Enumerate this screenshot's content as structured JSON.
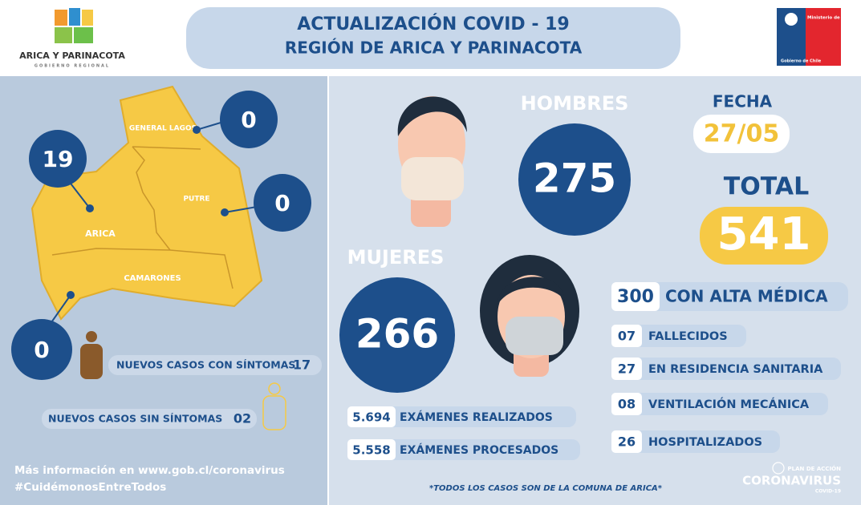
{
  "header": {
    "org": "ARICA Y PARINACOTA",
    "org_sub": "GOBIERNO REGIONAL",
    "title": "ACTUALIZACIÓN COVID - 19",
    "subtitle": "REGIÓN DE ARICA Y PARINACOTA",
    "ministry": "Ministerio de Salud",
    "government": "Gobierno de Chile"
  },
  "map": {
    "communes": [
      {
        "name": "GENERAL LAGOS",
        "cases": "0"
      },
      {
        "name": "ARICA",
        "cases": "19"
      },
      {
        "name": "PUTRE",
        "cases": "0"
      },
      {
        "name": "CAMARONES",
        "cases": "0"
      }
    ]
  },
  "new_cases": [
    {
      "label": "NUEVOS CASOS CON SÍNTOMAS",
      "value": "17"
    },
    {
      "label": "NUEVOS CASOS SIN SÍNTOMAS",
      "value": "02"
    }
  ],
  "footer": {
    "info": "Más información en www.gob.cl/coronavirus",
    "hashtag": "#CuidémonosEntreTodos",
    "note": "*TODOS LOS CASOS SON DE LA COMUNA DE ARICA*"
  },
  "men": {
    "label": "HOMBRES",
    "value": "275"
  },
  "women": {
    "label": "MUJERES",
    "value": "266"
  },
  "date": {
    "label": "FECHA",
    "value": "27/05"
  },
  "total": {
    "label": "TOTAL",
    "value": "541"
  },
  "stats": [
    {
      "value": "300",
      "label": "CON ALTA MÉDICA"
    },
    {
      "value": "07",
      "label": "FALLECIDOS"
    },
    {
      "value": "27",
      "label": "EN RESIDENCIA SANITARIA"
    },
    {
      "value": "08",
      "label": "VENTILACIÓN MECÁNICA"
    },
    {
      "value": "26",
      "label": "HOSPITALIZADOS"
    }
  ],
  "exams": [
    {
      "value": "5.694",
      "label": "EXÁMENES REALIZADOS"
    },
    {
      "value": "5.558",
      "label": "EXÁMENES PROCESADOS"
    }
  ],
  "campaign": {
    "top": "PLAN DE ACCIÓN",
    "main": "CORONAVIRUS",
    "sub": "COVID-19"
  }
}
